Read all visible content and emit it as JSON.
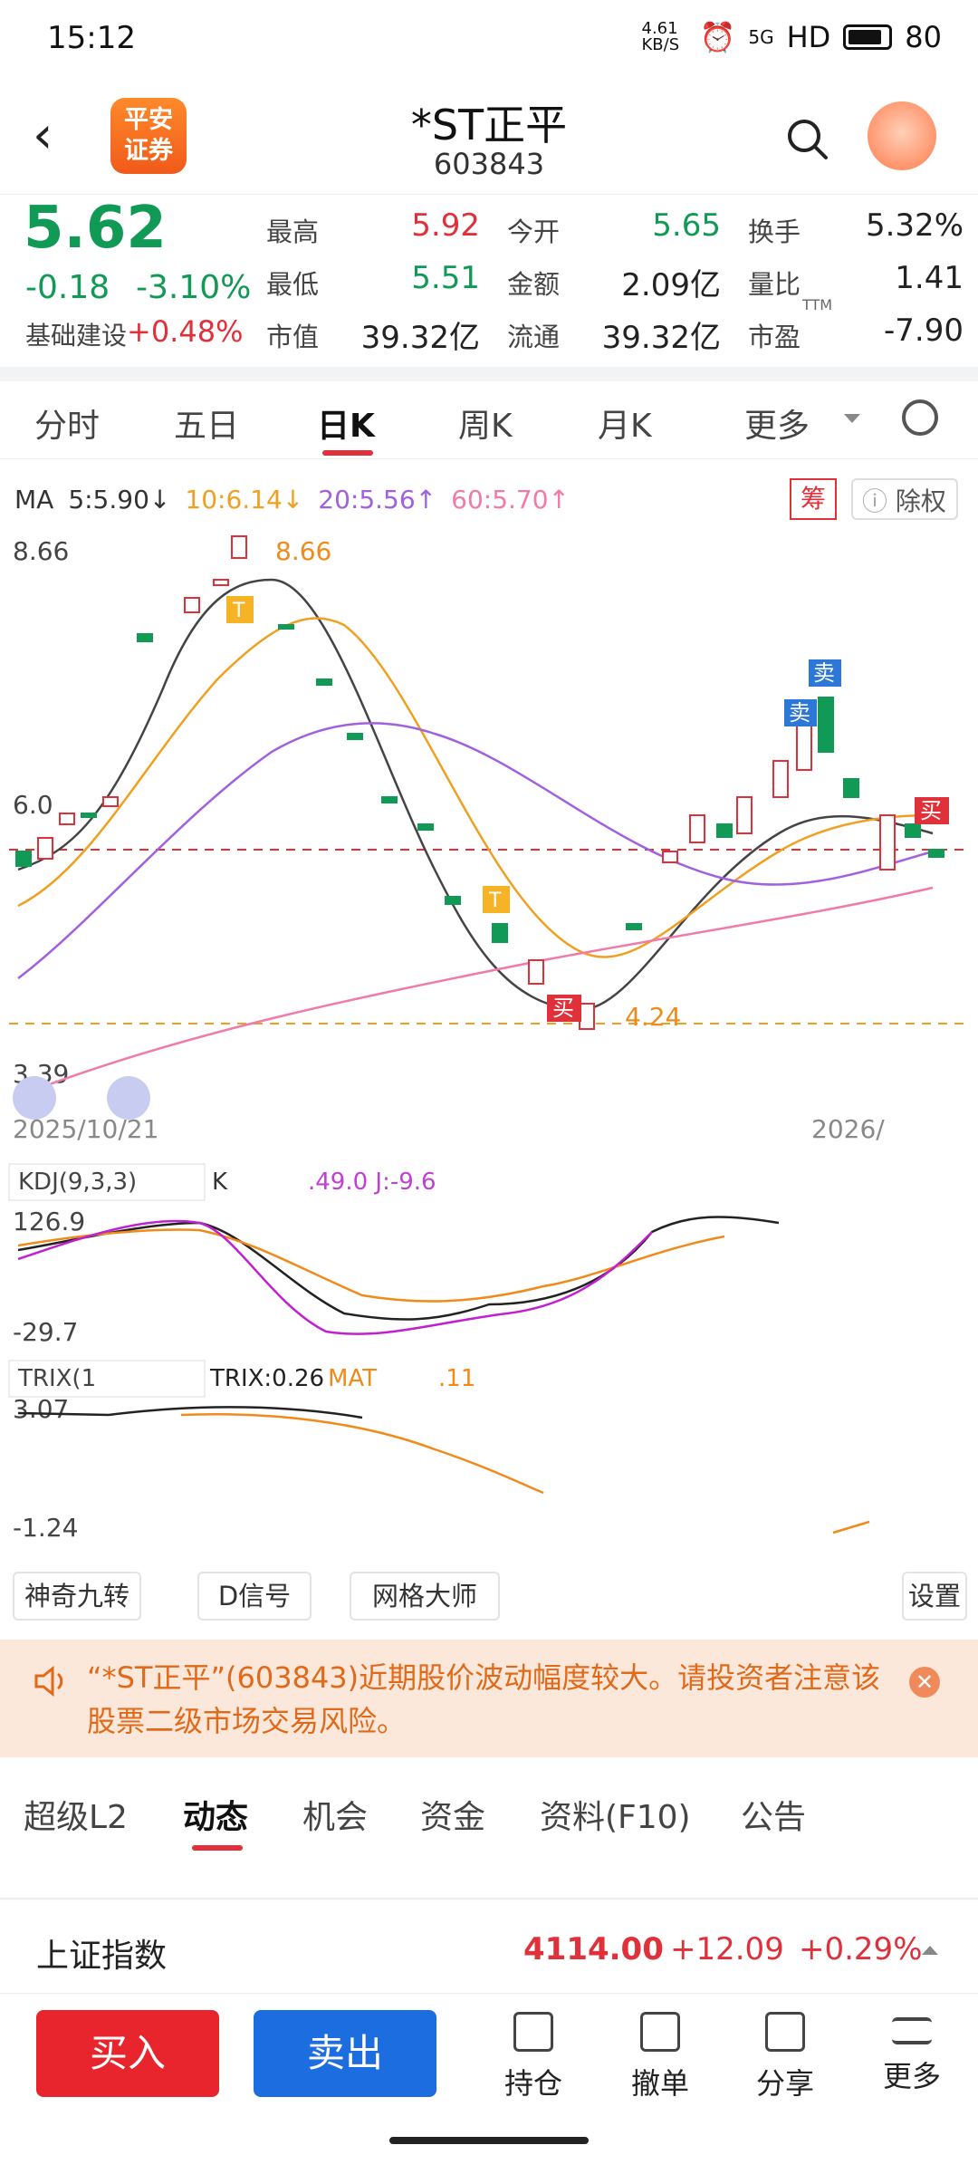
{
  "status": {
    "time": "15:12",
    "net_speed": "4.61 KB/S",
    "signal": "5G",
    "hd": "HD",
    "battery": "80"
  },
  "header": {
    "logo_line1": "平安",
    "logo_line2": "证券",
    "title": "*ST正平",
    "code": "603843"
  },
  "quote": {
    "price": "5.62",
    "change": "-0.18",
    "change_pct": "-3.10%",
    "sector_name": "基础建设",
    "sector_change": "+0.48%",
    "fields": {
      "high_label": "最高",
      "high": "5.92",
      "low_label": "最低",
      "low": "5.51",
      "cap_label": "市值",
      "cap": "39.32亿",
      "open_label": "今开",
      "open": "5.65",
      "amount_label": "金额",
      "amount": "2.09亿",
      "float_label": "流通",
      "float": "39.32亿",
      "turnover_label": "换手",
      "turnover": "5.32%",
      "vol_ratio_label": "量比",
      "vol_ratio": "1.41",
      "pe_label": "市盈",
      "pe_sup": "TTM",
      "pe": "-7.90"
    }
  },
  "period_tabs": [
    "分时",
    "五日",
    "日K",
    "周K",
    "月K",
    "更多"
  ],
  "ma_legend": {
    "label": "MA",
    "ma5": "5:5.90↓",
    "ma10": "10:6.14↓",
    "ma20": "20:5.56↑",
    "ma60": "60:5.70↑",
    "chou": "筹",
    "chuquan": "除权"
  },
  "chart_data": [
    {
      "type": "candlestick",
      "y_max_label": "8.66",
      "y_min_label": "3.39",
      "y_mid_label": "6.0",
      "high_marker": "8.66",
      "low_marker": "4.24",
      "start_date": "2025/10/21",
      "end_date": "2026/",
      "buy_label": "买",
      "sell_label": "卖",
      "t_label": "T"
    },
    {
      "type": "line",
      "name": "KDJ(9,3,3)",
      "header_text": "KDJ(9,3,3)",
      "k_prefix": "K",
      "j_text": ".49.0 J:-9.6",
      "top": "126.9",
      "bottom": "-29.7"
    },
    {
      "type": "line",
      "name": "TRIX(1",
      "header_text": "TRIX(1",
      "trix_text": "TRIX:0.26",
      "mat_text": "MAT",
      "mat_val": ".11",
      "top": "3.07",
      "bottom": "-1.24"
    }
  ],
  "tools": [
    "神奇九转",
    "D信号",
    "网格大师",
    "设置"
  ],
  "warning": {
    "text": "“*ST正平”(603843)近期股价波动幅度较大。请投资者注意该股票二级市场交易风险。"
  },
  "bottom_tabs": [
    "超级L2",
    "动态",
    "机会",
    "资金",
    "资料(F10)",
    "公告"
  ],
  "index": {
    "name": "上证指数",
    "value": "4114.00",
    "change": "+12.09",
    "pct": "+0.29%"
  },
  "actions": {
    "buy": "买入",
    "sell": "卖出",
    "hold": "持仓",
    "cancel": "撤单",
    "share": "分享",
    "more": "更多"
  }
}
